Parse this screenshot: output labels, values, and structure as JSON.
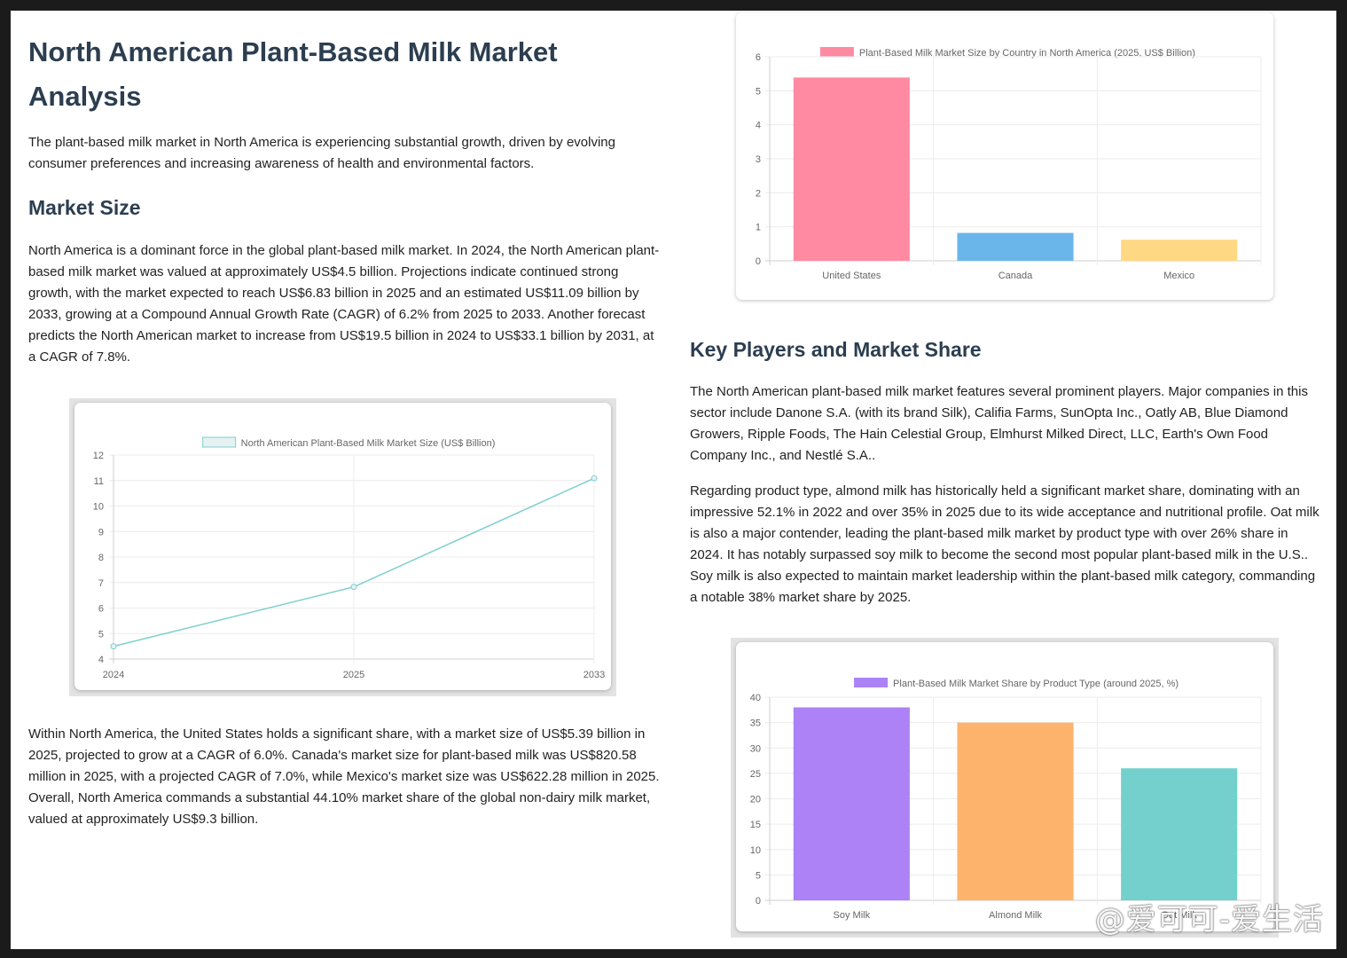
{
  "left": {
    "title": "North American Plant-Based Milk Market Analysis",
    "intro": "The plant-based milk market in North America is experiencing substantial growth, driven by evolving consumer preferences and increasing awareness of health and environmental factors.",
    "market_size_heading": "Market Size",
    "market_size_text": "North America is a dominant force in the global plant-based milk market. In 2024, the North American plant-based milk market was valued at approximately US$4.5 billion. Projections indicate continued strong growth, with the market expected to reach US$6.83 billion in 2025 and an estimated US$11.09 billion by 2033, growing at a Compound Annual Growth Rate (CAGR) of 6.2% from 2025 to 2033. Another forecast predicts the North American market to increase from US$19.5 billion in 2024 to US$33.1 billion by 2031, at a CAGR of 7.8%.",
    "country_text": "Within North America, the United States holds a significant share, with a market size of US$5.39 billion in 2025, projected to grow at a CAGR of 6.0%. Canada's market size for plant-based milk was US$820.58 million in 2025, with a projected CAGR of 7.0%, while Mexico's market size was US$622.28 million in 2025. Overall, North America commands a substantial 44.10% market share of the global non-dairy milk market, valued at approximately US$9.3 billion."
  },
  "right": {
    "players_heading": "Key Players and Market Share",
    "players_text": "The North American plant-based milk market features several prominent players. Major companies in this sector include Danone S.A. (with its brand Silk), Califia Farms, SunOpta Inc., Oatly AB, Blue Diamond Growers, Ripple Foods, The Hain Celestial Group, Elmhurst Milked Direct, LLC, Earth's Own Food Company Inc., and Nestlé S.A..",
    "product_text": "Regarding product type, almond milk has historically held a significant market share, dominating with an impressive 52.1% in 2022 and over 35% in 2025 due to its wide acceptance and nutritional profile. Oat milk is also a major contender, leading the plant-based milk market by product type with over 26% share in 2024. It has notably surpassed soy milk to become the second most popular plant-based milk in the U.S.. Soy milk is also expected to maintain market leadership within the plant-based milk category, commanding a notable 38% market share by 2025."
  },
  "watermark": "@爱可可-爱生活",
  "chart_data": [
    {
      "id": "line",
      "type": "line",
      "legend_label": "North American Plant-Based Milk Market Size (US$ Billion)",
      "legend_position": "top",
      "x": [
        "2024",
        "2025",
        "2033"
      ],
      "values": [
        4.5,
        6.83,
        11.09
      ],
      "ylim": [
        4,
        12
      ],
      "yticks": [
        4,
        5,
        6,
        7,
        8,
        9,
        10,
        11,
        12
      ],
      "grid": true,
      "color": "#7fcfd0",
      "fill": "#e6f1f1"
    },
    {
      "id": "country",
      "type": "bar",
      "legend_label": "Plant-Based Milk Market Size by Country in North America (2025, US$ Billion)",
      "legend_position": "top",
      "categories": [
        "United States",
        "Canada",
        "Mexico"
      ],
      "values": [
        5.39,
        0.82,
        0.62
      ],
      "colors": [
        "#ff8aa2",
        "#6ab6ea",
        "#ffd883"
      ],
      "ylim": [
        0,
        6
      ],
      "yticks": [
        0,
        1,
        2,
        3,
        4,
        5,
        6
      ],
      "grid": true,
      "legend_color": "#ff8aa2"
    },
    {
      "id": "product",
      "type": "bar",
      "legend_label": "Plant-Based Milk Market Share by Product Type (around 2025, %)",
      "legend_position": "top",
      "categories": [
        "Soy Milk",
        "Almond Milk",
        "Oat Milk"
      ],
      "values": [
        38,
        35,
        26
      ],
      "colors": [
        "#ac82f6",
        "#fdb36c",
        "#74d0cc"
      ],
      "ylim": [
        0,
        40
      ],
      "yticks": [
        0,
        5,
        10,
        15,
        20,
        25,
        30,
        35,
        40
      ],
      "grid": true,
      "legend_color": "#ac82f6"
    }
  ]
}
